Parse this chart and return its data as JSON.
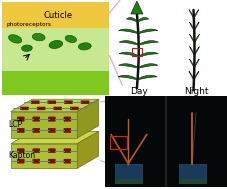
{
  "fig_width": 2.28,
  "fig_height": 1.89,
  "dpi": 100,
  "background": "#ffffff",
  "top_left": {
    "bg_yellow": "#f0c840",
    "bg_light_green": "#c8e890",
    "bg_bright_green": "#80c820",
    "text_cuticle": "Cuticle",
    "text_photo": "photoreceptors",
    "text_color": "#000000",
    "ellipse_color": "#2a8a10",
    "connector_color": "#e8a0b8"
  },
  "top_right": {
    "day_leaf_dark": "#1a8010",
    "day_leaf_light": "#30c020",
    "night_leaf_dark": "#1a9010",
    "night_leaf_light": "#40e020",
    "stem_color": "#101010",
    "text_day": "Day",
    "text_night": "Night",
    "text_color": "#000000"
  },
  "bottom_left": {
    "lcp_top_color": "#c0d040",
    "lcp_front_color": "#a8b830",
    "lcp_side_color": "#909820",
    "kapton_top_color": "#c8d848",
    "kapton_front_color": "#b0c030",
    "kapton_side_color": "#989820",
    "rod_color": "#7a1010",
    "line_color": "#5080b0",
    "text_lcp": "LCP",
    "text_kapton": "Kapton",
    "text_color": "#000000",
    "connector_color": "#e8a0b8"
  },
  "bottom_right": {
    "bg_color": "#050808",
    "divider_color": "#222222",
    "plant_color": "#b86030",
    "red_color": "#dd2200",
    "container_color": "#1a3a5a",
    "container_edge": "#204868"
  }
}
